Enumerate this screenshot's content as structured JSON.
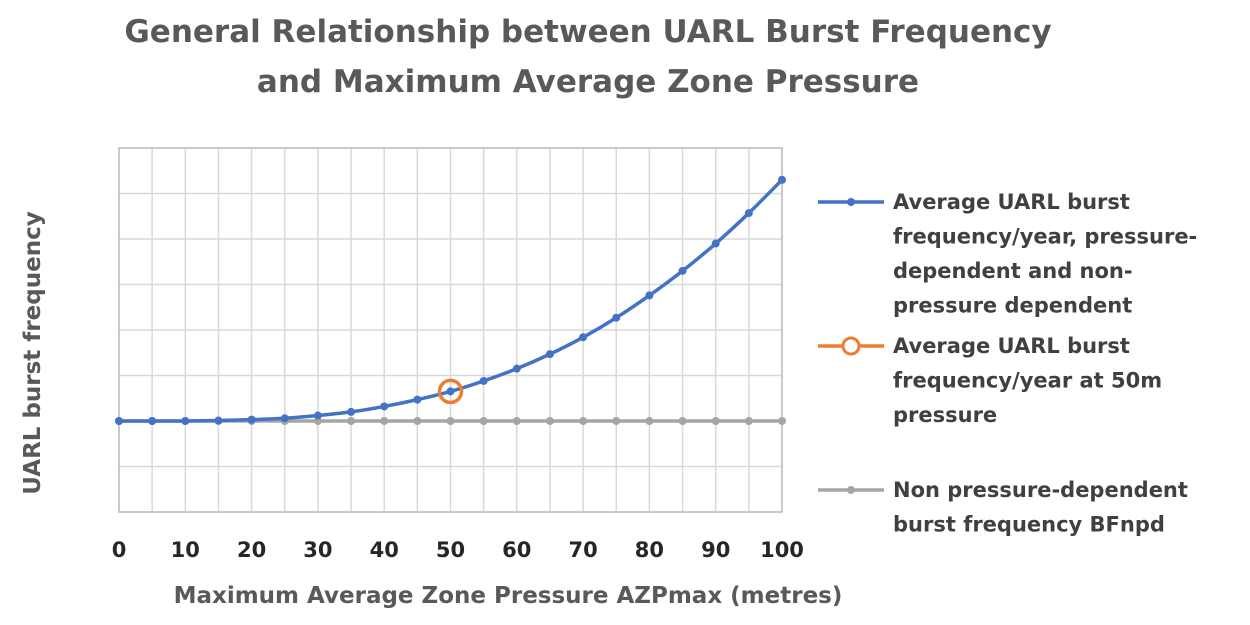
{
  "chart_data": {
    "type": "line",
    "title": [
      "General Relationship between UARL Burst Frequency",
      "and  Maximum Average Zone Pressure"
    ],
    "xlabel": "Maximum Average Zone Pressure  AZPmax (metres)",
    "ylabel": "UARL  burst frequency",
    "xlim": [
      0,
      100
    ],
    "ylim": [
      -2,
      6
    ],
    "x_ticks": [
      "0",
      "10",
      "20",
      "30",
      "40",
      "50",
      "60",
      "70",
      "80",
      "90",
      "100"
    ],
    "grid": true,
    "legend_position": "right",
    "series": [
      {
        "name": [
          "Average UARL burst",
          "frequency/year, pressure-",
          "dependent and non-",
          "pressure dependent"
        ],
        "color": "#4472C4",
        "marker": "dot",
        "x": [
          0,
          5,
          10,
          15,
          20,
          25,
          30,
          35,
          40,
          45,
          50,
          55,
          60,
          65,
          70,
          75,
          80,
          85,
          90,
          95,
          100
        ],
        "y": [
          0,
          0,
          0,
          0.01,
          0.03,
          0.06,
          0.12,
          0.2,
          0.32,
          0.47,
          0.65,
          0.88,
          1.15,
          1.47,
          1.84,
          2.27,
          2.76,
          3.3,
          3.9,
          4.57,
          5.3
        ]
      },
      {
        "name": [
          "Average UARL burst",
          "frequency/year at 50m",
          "pressure"
        ],
        "color": "#ED7D31",
        "marker": "circle",
        "x": [
          50
        ],
        "y": [
          0.65
        ]
      },
      {
        "name": [
          "Non pressure-dependent",
          "burst frequency BFnpd"
        ],
        "color": "#A5A5A5",
        "marker": "dot",
        "x": [
          0,
          5,
          10,
          15,
          20,
          25,
          30,
          35,
          40,
          45,
          50,
          55,
          60,
          65,
          70,
          75,
          80,
          85,
          90,
          95,
          100
        ],
        "y": [
          0,
          0,
          0,
          0,
          0,
          0,
          0,
          0,
          0,
          0,
          0,
          0,
          0,
          0,
          0,
          0,
          0,
          0,
          0,
          0,
          0
        ]
      }
    ]
  }
}
